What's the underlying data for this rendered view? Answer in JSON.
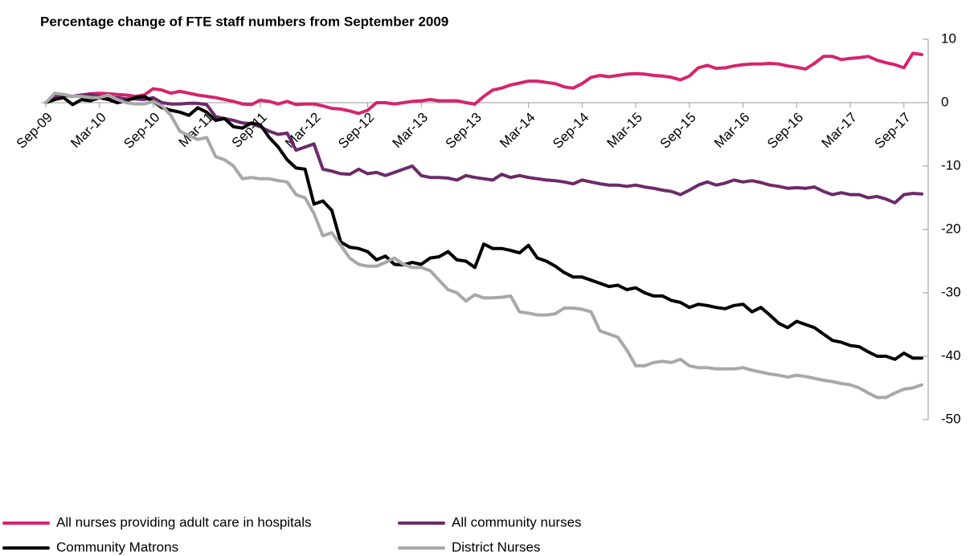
{
  "chart_data": {
    "type": "line",
    "title": "Percentage change of FTE staff numbers from September 2009",
    "categories": [
      "Sep-09",
      null,
      null,
      null,
      null,
      null,
      "Mar-10",
      null,
      null,
      null,
      null,
      null,
      "Sep-10",
      null,
      null,
      null,
      null,
      null,
      "Mar-11",
      null,
      null,
      null,
      null,
      null,
      "Sep-11",
      null,
      null,
      null,
      null,
      null,
      "Mar-12",
      null,
      null,
      null,
      null,
      null,
      "Sep-12",
      null,
      null,
      null,
      null,
      null,
      "Mar-13",
      null,
      null,
      null,
      null,
      null,
      "Sep-13",
      null,
      null,
      null,
      null,
      null,
      "Mar-14",
      null,
      null,
      null,
      null,
      null,
      "Sep-14",
      null,
      null,
      null,
      null,
      null,
      "Mar-15",
      null,
      null,
      null,
      null,
      null,
      "Sep-15",
      null,
      null,
      null,
      null,
      null,
      "Mar-16",
      null,
      null,
      null,
      null,
      null,
      "Sep-16",
      null,
      null,
      null,
      null,
      null,
      "Mar-17",
      null,
      null,
      null,
      null,
      null,
      "Sep-17",
      null,
      null
    ],
    "series": [
      {
        "name": "All nurses providing adult care in hospitals",
        "color": "#d6246e",
        "values": [
          0,
          1,
          1.2,
          1,
          1.2,
          1.4,
          1.5,
          1.4,
          1.3,
          1.2,
          1.0,
          1.2,
          2.2,
          2.0,
          1.5,
          1.8,
          1.5,
          1.2,
          1.0,
          0.8,
          0.5,
          0.2,
          -0.2,
          -0.3,
          0.4,
          0.2,
          -0.2,
          0.2,
          -0.3,
          -0.2,
          -0.2,
          -0.5,
          -0.9,
          -1.0,
          -1.3,
          -1.7,
          -1.2,
          0,
          0,
          -0.2,
          0,
          0.2,
          0.3,
          0.5,
          0.3,
          0.3,
          0.3,
          0,
          -0.2,
          1,
          2,
          2.3,
          2.8,
          3.1,
          3.4,
          3.4,
          3.2,
          3.0,
          2.5,
          2.3,
          3,
          4,
          4.3,
          4.1,
          4.3,
          4.5,
          4.6,
          4.5,
          4.3,
          4.2,
          4.0,
          3.6,
          4.2,
          5.5,
          5.9,
          5.4,
          5.5,
          5.8,
          6.0,
          6.1,
          6.1,
          6.2,
          6.1,
          5.8,
          5.6,
          5.3,
          6.2,
          7.3,
          7.3,
          6.8,
          7.0,
          7.1,
          7.3,
          6.7,
          6.3,
          6.0,
          5.5,
          7.8,
          7.6
        ]
      },
      {
        "name": "All community nurses",
        "color": "#6c2a6a",
        "values": [
          0,
          1,
          1.2,
          1.0,
          1.2,
          1.3,
          1.0,
          0.8,
          0.8,
          0.6,
          0.6,
          0.5,
          0.8,
          0.0,
          -0.2,
          -0.2,
          -0.1,
          -0.1,
          -0.3,
          -2.2,
          -2.5,
          -2.8,
          -3.2,
          -3.3,
          -3.8,
          -4.5,
          -5.0,
          -4.8,
          -7.5,
          -7.0,
          -6.5,
          -10.5,
          -10.8,
          -11.2,
          -11.3,
          -10.5,
          -11.2,
          -11.0,
          -11.5,
          -11.0,
          -10.5,
          -10.0,
          -11.5,
          -11.8,
          -11.8,
          -11.9,
          -12.2,
          -11.5,
          -11.8,
          -12.0,
          -12.2,
          -11.3,
          -11.8,
          -11.5,
          -11.8,
          -12.0,
          -12.2,
          -12.3,
          -12.5,
          -12.8,
          -12.2,
          -12.5,
          -12.8,
          -13.0,
          -13.0,
          -13.2,
          -13.0,
          -13.3,
          -13.5,
          -13.8,
          -14.0,
          -14.5,
          -13.8,
          -13.0,
          -12.5,
          -13.0,
          -12.7,
          -12.2,
          -12.5,
          -12.3,
          -12.6,
          -13.0,
          -13.2,
          -13.5,
          -13.4,
          -13.5,
          -13.3,
          -14.0,
          -14.5,
          -14.2,
          -14.5,
          -14.5,
          -15.0,
          -14.8,
          -15.2,
          -15.8,
          -14.5,
          -14.3,
          -14.4
        ]
      },
      {
        "name": "Community Matrons",
        "color": "#000000",
        "values": [
          0,
          0.5,
          0.8,
          -0.3,
          0.5,
          0.3,
          0.8,
          0.5,
          0.0,
          0.3,
          0.8,
          1.0,
          0.2,
          -0.8,
          -1.2,
          -1.5,
          -2.0,
          -0.8,
          -1.5,
          -2.8,
          -2.5,
          -3.8,
          -4.0,
          -3.2,
          -3.5,
          -5.5,
          -7.0,
          -9.0,
          -10.3,
          -10.5,
          -16,
          -15.5,
          -17.0,
          -22.0,
          -22.8,
          -23.0,
          -23.5,
          -24.8,
          -24.2,
          -25.5,
          -25.6,
          -25.2,
          -25.5,
          -24.5,
          -24.3,
          -23.5,
          -24.8,
          -25.0,
          -26.0,
          -22.3,
          -23.0,
          -23.0,
          -23.3,
          -23.7,
          -22.5,
          -24.5,
          -25.0,
          -25.8,
          -26.8,
          -27.5,
          -27.5,
          -28.0,
          -28.5,
          -29.0,
          -28.8,
          -29.5,
          -29.2,
          -30.0,
          -30.5,
          -30.5,
          -31.2,
          -31.5,
          -32.3,
          -31.8,
          -32.0,
          -32.3,
          -32.5,
          -32.0,
          -31.8,
          -33.0,
          -32.3,
          -33.5,
          -34.8,
          -35.5,
          -34.5,
          -35.0,
          -35.5,
          -36.5,
          -37.5,
          -37.8,
          -38.3,
          -38.5,
          -39.3,
          -40.0,
          -40.0,
          -40.5,
          -39.5,
          -40.3,
          -40.3
        ]
      },
      {
        "name": "District Nurses",
        "color": "#a8a8a8",
        "values": [
          0,
          1.5,
          1.3,
          1.0,
          1.0,
          0.8,
          0.8,
          1.2,
          0.5,
          0.0,
          -0.2,
          -0.2,
          0.2,
          -0.5,
          -2.0,
          -4.5,
          -5.2,
          -5.8,
          -5.5,
          -8.5,
          -9.0,
          -10.0,
          -12.0,
          -11.8,
          -12.0,
          -12.0,
          -12.3,
          -12.5,
          -14.5,
          -15.0,
          -17.5,
          -21.0,
          -20.5,
          -22.5,
          -24.5,
          -25.5,
          -25.8,
          -25.8,
          -25.2,
          -24.5,
          -25.5,
          -26.0,
          -26.0,
          -26.5,
          -28.0,
          -29.5,
          -30.0,
          -31.3,
          -30.3,
          -30.8,
          -30.8,
          -30.7,
          -30.5,
          -33.0,
          -33.2,
          -33.5,
          -33.5,
          -33.3,
          -32.4,
          -32.4,
          -32.6,
          -33.0,
          -36.0,
          -36.5,
          -37.0,
          -39.0,
          -41.5,
          -41.5,
          -41.0,
          -40.8,
          -41.0,
          -40.5,
          -41.5,
          -41.8,
          -41.8,
          -42.0,
          -42.0,
          -42.0,
          -41.8,
          -42.2,
          -42.5,
          -42.8,
          -43.0,
          -43.3,
          -43.0,
          -43.2,
          -43.5,
          -43.8,
          -44.0,
          -44.3,
          -44.5,
          -45.0,
          -45.8,
          -46.5,
          -46.5,
          -45.8,
          -45.2,
          -45.0,
          -44.5
        ]
      }
    ],
    "ylim": [
      -50,
      10
    ],
    "yticks": [
      -50,
      -40,
      -30,
      -20,
      -10,
      0,
      10
    ],
    "grid": false,
    "legend": "bottom"
  }
}
